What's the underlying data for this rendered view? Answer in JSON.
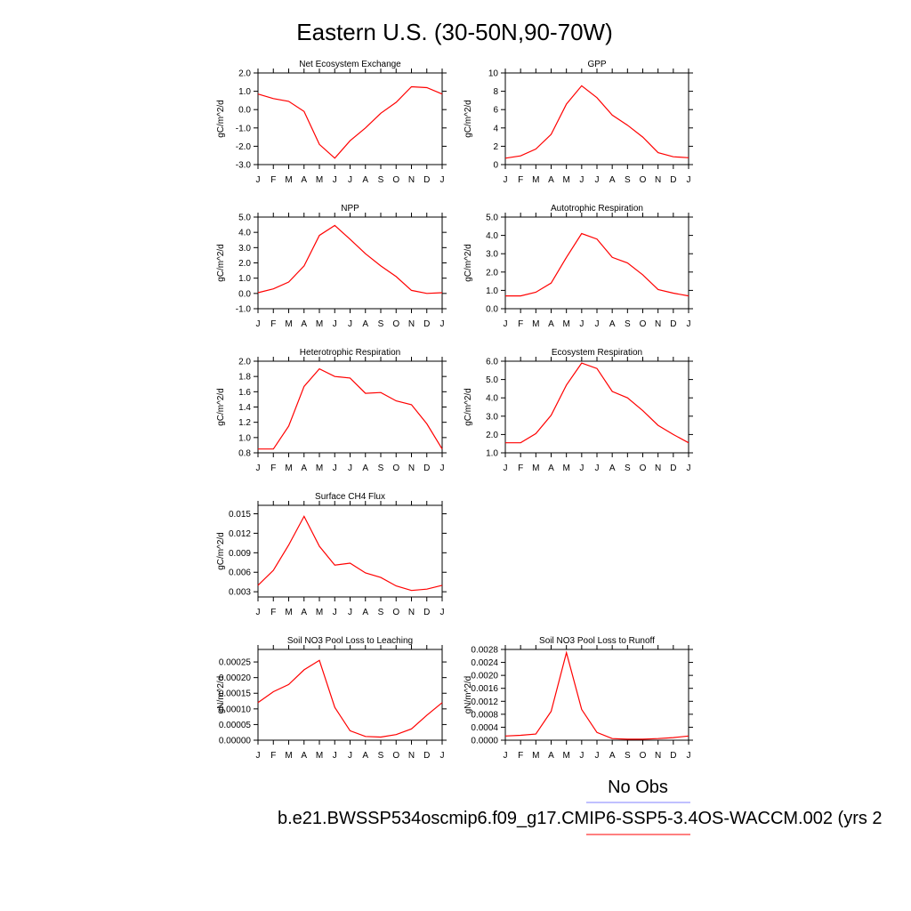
{
  "figure": {
    "title": "Eastern U.S. (30-50N,90-70W)",
    "legend_label": "No Obs",
    "case_label": "b.e21.BWSSP534oscmip6.f09_g17.CMIP6-SSP5-3.4OS-WACCM.002 (yrs 2",
    "obs_line_color": "#8080ff",
    "model_line_color": "#ff0000"
  },
  "chart_data": [
    {
      "type": "line",
      "title": "Net Ecosystem Exchange",
      "ylabel": "gC/m^2/d",
      "categories": [
        "J",
        "F",
        "M",
        "A",
        "M",
        "J",
        "J",
        "A",
        "S",
        "O",
        "N",
        "D",
        "J"
      ],
      "ylim": [
        -3.0,
        2.0
      ],
      "yticks": [
        "2.0",
        "1.0",
        "0.0",
        "-1.0",
        "-2.0",
        "-3.0"
      ],
      "series": [
        {
          "values": [
            0.85,
            0.6,
            0.45,
            -0.1,
            -1.9,
            -2.65,
            -1.7,
            -1.0,
            -0.2,
            0.4,
            1.25,
            1.2,
            0.85
          ]
        }
      ]
    },
    {
      "type": "line",
      "title": "GPP",
      "ylabel": "gC/m^2/d",
      "categories": [
        "J",
        "F",
        "M",
        "A",
        "M",
        "J",
        "J",
        "A",
        "S",
        "O",
        "N",
        "D",
        "J"
      ],
      "ylim": [
        0,
        10
      ],
      "yticks": [
        "10",
        "8",
        "6",
        "4",
        "2",
        "0"
      ],
      "series": [
        {
          "values": [
            0.7,
            0.95,
            1.7,
            3.3,
            6.6,
            8.6,
            7.3,
            5.4,
            4.3,
            3.0,
            1.3,
            0.85,
            0.75
          ]
        }
      ]
    },
    {
      "type": "line",
      "title": "NPP",
      "ylabel": "gC/m^2/d",
      "categories": [
        "J",
        "F",
        "M",
        "A",
        "M",
        "J",
        "J",
        "A",
        "S",
        "O",
        "N",
        "D",
        "J"
      ],
      "ylim": [
        -1.0,
        5.0
      ],
      "yticks": [
        "5.0",
        "4.0",
        "3.0",
        "2.0",
        "1.0",
        "0.0",
        "-1.0"
      ],
      "series": [
        {
          "values": [
            0.05,
            0.3,
            0.75,
            1.8,
            3.8,
            4.45,
            3.55,
            2.6,
            1.8,
            1.1,
            0.2,
            0.0,
            0.05
          ]
        }
      ]
    },
    {
      "type": "line",
      "title": "Autotrophic Respiration",
      "ylabel": "gC/m^2/d",
      "categories": [
        "J",
        "F",
        "M",
        "A",
        "M",
        "J",
        "J",
        "A",
        "S",
        "O",
        "N",
        "D",
        "J"
      ],
      "ylim": [
        0.0,
        5.0
      ],
      "yticks": [
        "5.0",
        "4.0",
        "3.0",
        "2.0",
        "1.0",
        "0.0"
      ],
      "series": [
        {
          "values": [
            0.7,
            0.7,
            0.9,
            1.4,
            2.8,
            4.1,
            3.8,
            2.8,
            2.5,
            1.85,
            1.05,
            0.85,
            0.7
          ]
        }
      ]
    },
    {
      "type": "line",
      "title": "Heterotrophic Respiration",
      "ylabel": "gC/m^2/d",
      "categories": [
        "J",
        "F",
        "M",
        "A",
        "M",
        "J",
        "J",
        "A",
        "S",
        "O",
        "N",
        "D",
        "J"
      ],
      "ylim": [
        0.8,
        2.0
      ],
      "yticks": [
        "2.0",
        "1.8",
        "1.6",
        "1.4",
        "1.2",
        "1.0",
        "0.8"
      ],
      "series": [
        {
          "values": [
            0.85,
            0.85,
            1.15,
            1.67,
            1.9,
            1.8,
            1.78,
            1.58,
            1.59,
            1.48,
            1.43,
            1.18,
            0.85
          ]
        }
      ]
    },
    {
      "type": "line",
      "title": "Ecosystem Respiration",
      "ylabel": "gC/m^2/d",
      "categories": [
        "J",
        "F",
        "M",
        "A",
        "M",
        "J",
        "J",
        "A",
        "S",
        "O",
        "N",
        "D",
        "J"
      ],
      "ylim": [
        1.0,
        6.0
      ],
      "yticks": [
        "6.0",
        "5.0",
        "4.0",
        "3.0",
        "2.0",
        "1.0"
      ],
      "series": [
        {
          "values": [
            1.55,
            1.55,
            2.05,
            3.05,
            4.7,
            5.9,
            5.6,
            4.35,
            4.0,
            3.3,
            2.5,
            2.0,
            1.55
          ]
        }
      ]
    },
    {
      "type": "line",
      "title": "Surface CH4 Flux",
      "ylabel": "gC/m^2/d",
      "categories": [
        "J",
        "F",
        "M",
        "A",
        "M",
        "J",
        "J",
        "A",
        "S",
        "O",
        "N",
        "D",
        "J"
      ],
      "ylim": [
        0.0022,
        0.0163
      ],
      "yticks": [
        "0.015",
        "0.012",
        "0.009",
        "0.006",
        "0.003"
      ],
      "ytick_values": [
        0.015,
        0.012,
        0.009,
        0.006,
        0.003
      ],
      "series": [
        {
          "values": [
            0.004,
            0.0063,
            0.0102,
            0.0146,
            0.01,
            0.0071,
            0.0074,
            0.0059,
            0.0052,
            0.0039,
            0.0032,
            0.0034,
            0.004
          ]
        }
      ]
    },
    {
      "type": "line",
      "title": "Soil NO3 Pool Loss to Leaching",
      "ylabel": "gN/m^2/d",
      "categories": [
        "J",
        "F",
        "M",
        "A",
        "M",
        "J",
        "J",
        "A",
        "S",
        "O",
        "N",
        "D",
        "J"
      ],
      "ylim": [
        0.0,
        0.00029
      ],
      "yticks": [
        "0.00025",
        "0.00020",
        "0.00015",
        "0.00010",
        "0.00005",
        "0.00000"
      ],
      "ytick_values": [
        0.00025,
        0.0002,
        0.00015,
        0.0001,
        5e-05,
        0.0
      ],
      "series": [
        {
          "values": [
            0.00012,
            0.000155,
            0.000178,
            0.000225,
            0.000255,
            0.000105,
            3e-05,
            1.2e-05,
            1e-05,
            1.8e-05,
            3.6e-05,
            8e-05,
            0.00012
          ]
        }
      ]
    },
    {
      "type": "line",
      "title": "Soil NO3 Pool Loss to Runoff",
      "ylabel": "gN/m^2/d",
      "categories": [
        "J",
        "F",
        "M",
        "A",
        "M",
        "J",
        "J",
        "A",
        "S",
        "O",
        "N",
        "D",
        "J"
      ],
      "ylim": [
        0.0,
        0.0028
      ],
      "yticks": [
        "0.0028",
        "0.0024",
        "0.0020",
        "0.0016",
        "0.0012",
        "0.0008",
        "0.0004",
        "0.0000"
      ],
      "series": [
        {
          "values": [
            0.00013,
            0.00015,
            0.00019,
            0.00089,
            0.0027,
            0.00095,
            0.00024,
            5e-05,
            3e-05,
            3e-05,
            5e-05,
            8e-05,
            0.00013
          ]
        }
      ]
    }
  ]
}
